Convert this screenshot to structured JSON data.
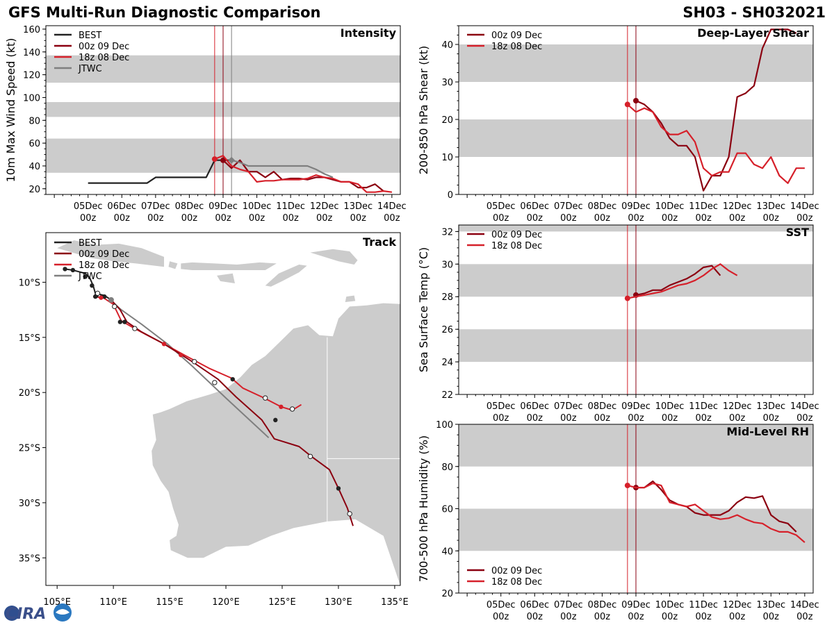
{
  "header": {
    "title": "GFS Multi-Run Diagnostic Comparison",
    "storm_id": "SH03 - SH032021"
  },
  "colors": {
    "best": "#222222",
    "run_00z": "#8b0010",
    "run_18z": "#d6202a",
    "jtwc": "#7f7f7f",
    "band": "#cccccc",
    "land": "#cccccc",
    "vline_18z": "#d6202a",
    "vline_00z": "#8b0010",
    "vline_jtwc": "#7f7f7f"
  },
  "logo": {
    "text": "CIRA"
  },
  "time_ticks": [
    {
      "day": 5,
      "l1": "05Dec",
      "l2": "00z"
    },
    {
      "day": 6,
      "l1": "06Dec",
      "l2": "00z"
    },
    {
      "day": 7,
      "l1": "07Dec",
      "l2": "00z"
    },
    {
      "day": 8,
      "l1": "08Dec",
      "l2": "00z"
    },
    {
      "day": 9,
      "l1": "09Dec",
      "l2": "00z"
    },
    {
      "day": 10,
      "l1": "10Dec",
      "l2": "00z"
    },
    {
      "day": 11,
      "l1": "11Dec",
      "l2": "00z"
    },
    {
      "day": 12,
      "l1": "12Dec",
      "l2": "00z"
    },
    {
      "day": 13,
      "l1": "13Dec",
      "l2": "00z"
    },
    {
      "day": 14,
      "l1": "14Dec",
      "l2": "00z"
    }
  ],
  "chart_data": [
    {
      "id": "intensity",
      "type": "line",
      "title": "Intensity",
      "ylabel": "10m Max Wind Speed (kt)",
      "xlim": [
        3.75,
        14.25
      ],
      "ylim": [
        15,
        163
      ],
      "yticks": [
        20,
        40,
        60,
        80,
        100,
        120,
        140,
        160
      ],
      "bands": [
        [
          34,
          64
        ],
        [
          83,
          96
        ],
        [
          113,
          137
        ]
      ],
      "vlines": [
        {
          "x": 8.75,
          "series": "18z"
        },
        {
          "x": 9.0,
          "series": "00z"
        },
        {
          "x": 9.25,
          "series": "jtwc"
        }
      ],
      "legend": [
        "BEST",
        "00z 09 Dec",
        "18z 08 Dec",
        "JTWC"
      ],
      "series": [
        {
          "key": "best",
          "name": "BEST",
          "x": [
            5,
            5.25,
            5.5,
            5.75,
            6,
            6.25,
            6.5,
            6.75,
            7,
            7.25,
            7.5,
            7.75,
            8,
            8.25,
            8.5,
            8.75,
            9,
            9.25
          ],
          "y": [
            25,
            25,
            25,
            25,
            25,
            25,
            25,
            25,
            30,
            30,
            30,
            30,
            30,
            30,
            30,
            45,
            45,
            45
          ]
        },
        {
          "key": "00z",
          "name": "00z 09 Dec",
          "x": [
            9,
            9.25,
            9.5,
            9.75,
            10,
            10.25,
            10.5,
            10.75,
            11,
            11.25,
            11.5,
            11.75,
            12,
            12.25,
            12.5,
            12.75,
            13,
            13.25,
            13.5,
            13.75
          ],
          "y": [
            45,
            38,
            45,
            35,
            35,
            30,
            35,
            28,
            29,
            29,
            28,
            30,
            30,
            28,
            26,
            26,
            21,
            21,
            24,
            18
          ]
        },
        {
          "key": "18z",
          "name": "18z 08 Dec",
          "x": [
            8.75,
            9,
            9.25,
            9.5,
            9.75,
            10,
            10.25,
            10.5,
            10.75,
            11,
            11.25,
            11.5,
            11.75,
            12,
            12.25,
            12.5,
            12.75,
            13,
            13.25,
            13.5,
            13.75,
            14
          ],
          "y": [
            46,
            49,
            40,
            37,
            35,
            26,
            27,
            27,
            28,
            28,
            28,
            29,
            32,
            30,
            29,
            26,
            26,
            24,
            17,
            17,
            18,
            17
          ]
        },
        {
          "key": "jtwc",
          "name": "JTWC",
          "x": [
            9.25,
            9.5,
            9.75,
            10,
            10.5,
            11,
            11.25,
            11.5,
            11.75,
            12,
            12.25
          ],
          "y": [
            45,
            43,
            40,
            40,
            40,
            40,
            40,
            40,
            37,
            33,
            30
          ]
        }
      ]
    },
    {
      "id": "shear",
      "type": "line",
      "title": "Deep-Layer Shear",
      "ylabel": "200-850 hPa Shear (kt)",
      "xlim": [
        3.75,
        14.25
      ],
      "ylim": [
        0,
        45
      ],
      "yticks": [
        0,
        10,
        20,
        30,
        40
      ],
      "bands": [
        [
          10,
          20
        ],
        [
          30,
          40
        ]
      ],
      "vlines": [
        {
          "x": 8.75,
          "series": "18z"
        },
        {
          "x": 9.0,
          "series": "00z"
        }
      ],
      "legend": [
        "00z 09 Dec",
        "18z 08 Dec"
      ],
      "series": [
        {
          "key": "00z",
          "name": "00z 09 Dec",
          "x": [
            9,
            9.25,
            9.5,
            9.75,
            10,
            10.25,
            10.5,
            10.75,
            11,
            11.25,
            11.5,
            11.75,
            12,
            12.25,
            12.5,
            12.75,
            13,
            13.25,
            13.5,
            13.75
          ],
          "y": [
            25,
            24,
            22,
            19,
            15,
            13,
            13,
            10,
            1,
            5,
            5,
            10,
            26,
            27,
            29,
            39,
            44,
            44,
            44,
            43
          ]
        },
        {
          "key": "18z",
          "name": "18z 08 Dec",
          "x": [
            8.75,
            9,
            9.25,
            9.5,
            9.75,
            10,
            10.25,
            10.5,
            10.75,
            11,
            11.25,
            11.5,
            11.75,
            12,
            12.25,
            12.5,
            12.75,
            13,
            13.25,
            13.5,
            13.75,
            14
          ],
          "y": [
            24,
            22,
            23,
            22,
            18,
            16,
            16,
            17,
            14,
            7,
            5,
            6,
            6,
            11,
            11,
            8,
            7,
            10,
            5,
            3,
            7,
            7
          ]
        }
      ]
    },
    {
      "id": "sst",
      "type": "line",
      "title": "SST",
      "ylabel": "Sea Surface Temp (°C)",
      "xlim": [
        3.75,
        14.25
      ],
      "ylim": [
        22,
        32.4
      ],
      "yticks": [
        22,
        24,
        26,
        28,
        30,
        32
      ],
      "bands": [
        [
          24,
          26
        ],
        [
          28,
          30
        ],
        [
          32,
          33
        ]
      ],
      "vlines": [
        {
          "x": 8.75,
          "series": "18z"
        },
        {
          "x": 9.0,
          "series": "00z"
        }
      ],
      "legend": [
        "00z 09 Dec",
        "18z 08 Dec"
      ],
      "series": [
        {
          "key": "00z",
          "name": "00z 09 Dec",
          "x": [
            9,
            9.25,
            9.5,
            9.75,
            10,
            10.25,
            10.5,
            10.75,
            11,
            11.25,
            11.5
          ],
          "y": [
            28.1,
            28.2,
            28.4,
            28.4,
            28.7,
            28.9,
            29.1,
            29.4,
            29.8,
            29.9,
            29.3
          ]
        },
        {
          "key": "18z",
          "name": "18z 08 Dec",
          "x": [
            8.75,
            9,
            9.25,
            9.5,
            9.75,
            10,
            10.25,
            10.5,
            10.75,
            11,
            11.25,
            11.5,
            11.75,
            12
          ],
          "y": [
            27.9,
            28.0,
            28.1,
            28.2,
            28.3,
            28.5,
            28.7,
            28.8,
            29.0,
            29.3,
            29.7,
            30.0,
            29.6,
            29.3
          ]
        }
      ]
    },
    {
      "id": "rh",
      "type": "line",
      "title": "Mid-Level RH",
      "ylabel": "700-500 hPa Humidity (%)",
      "xlim": [
        3.75,
        14.25
      ],
      "ylim": [
        20,
        100
      ],
      "yticks": [
        20,
        40,
        60,
        80,
        100
      ],
      "bands": [
        [
          40,
          60
        ],
        [
          80,
          100
        ]
      ],
      "vlines": [
        {
          "x": 8.75,
          "series": "18z"
        },
        {
          "x": 9.0,
          "series": "00z"
        }
      ],
      "legend": [
        "00z 09 Dec",
        "18z 08 Dec"
      ],
      "legend_pos": "bottom-left",
      "series": [
        {
          "key": "00z",
          "name": "00z 09 Dec",
          "x": [
            9,
            9.25,
            9.5,
            9.75,
            10,
            10.25,
            10.5,
            10.75,
            11,
            11.25,
            11.5,
            11.75,
            12,
            12.25,
            12.5,
            12.75,
            13,
            13.25,
            13.5,
            13.75
          ],
          "y": [
            70,
            70,
            73,
            69,
            64,
            62,
            61,
            58,
            57,
            57,
            57,
            59,
            63,
            65.5,
            65,
            66,
            57,
            54,
            53,
            49
          ]
        },
        {
          "key": "18z",
          "name": "18z 08 Dec",
          "x": [
            8.75,
            9,
            9.25,
            9.5,
            9.75,
            10,
            10.25,
            10.5,
            10.75,
            11,
            11.25,
            11.5,
            11.75,
            12,
            12.25,
            12.5,
            12.75,
            13,
            13.25,
            13.5,
            13.75,
            14
          ],
          "y": [
            71,
            70,
            70,
            72,
            71,
            63,
            62,
            61,
            62,
            59,
            56,
            55,
            55.5,
            57,
            55,
            53.5,
            53,
            50.5,
            49,
            49,
            47.5,
            44
          ]
        }
      ]
    },
    {
      "id": "track",
      "type": "scatter",
      "title": "Track",
      "xlabel": "Longitude",
      "ylabel": "Latitude",
      "xlim": [
        104,
        135.5
      ],
      "ylim": [
        -37.5,
        -5.5
      ],
      "xticks": [
        {
          "v": 105,
          "l": "105°E"
        },
        {
          "v": 110,
          "l": "110°E"
        },
        {
          "v": 115,
          "l": "115°E"
        },
        {
          "v": 120,
          "l": "120°E"
        },
        {
          "v": 125,
          "l": "125°E"
        },
        {
          "v": 130,
          "l": "130°E"
        },
        {
          "v": 135,
          "l": "135°E"
        }
      ],
      "yticks": [
        {
          "v": -10,
          "l": "10°S"
        },
        {
          "v": -15,
          "l": "15°S"
        },
        {
          "v": -20,
          "l": "20°S"
        },
        {
          "v": -25,
          "l": "25°S"
        },
        {
          "v": -30,
          "l": "30°S"
        },
        {
          "v": -35,
          "l": "35°S"
        }
      ],
      "legend": [
        "BEST",
        "00z 09 Dec",
        "18z 08 Dec",
        "JTWC"
      ],
      "series": [
        {
          "key": "best",
          "name": "BEST",
          "lon": [
            105.7,
            106.4,
            107.5,
            107.9,
            108.2,
            108.4,
            109.2,
            109.8
          ],
          "lat": [
            -8.8,
            -8.9,
            -9.2,
            -9.6,
            -10.3,
            -11.0,
            -11.2,
            -11.6
          ]
        },
        {
          "key": "00z",
          "name": "00z 09 Dec",
          "lon": [
            109.8,
            110.6,
            111.2,
            112.5,
            114.5,
            117.0,
            119.3,
            120.9,
            123.2,
            124.3,
            126.5,
            127.6,
            129.2,
            130.0,
            130.8,
            131.3
          ],
          "lat": [
            -11.6,
            -12.5,
            -13.6,
            -14.5,
            -15.6,
            -17.2,
            -18.8,
            -20.4,
            -22.5,
            -24.2,
            -24.9,
            -25.8,
            -27.0,
            -28.7,
            -30.5,
            -32.1
          ]
        },
        {
          "key": "18z",
          "name": "18z 08 Dec",
          "lon": [
            108.2,
            109.1,
            110.0,
            110.7,
            111.9,
            113.0,
            114.5,
            116.3,
            118.5,
            120.5,
            121.5,
            123.4,
            124.9,
            125.9,
            126.7
          ],
          "lat": [
            -11.3,
            -11.4,
            -12.0,
            -13.5,
            -14.2,
            -14.8,
            -15.6,
            -16.6,
            -17.8,
            -18.7,
            -19.6,
            -20.5,
            -21.3,
            -21.6,
            -21.1
          ]
        },
        {
          "key": "jtwc",
          "name": "JTWC",
          "lon": [
            109.7,
            110.7,
            112.5,
            114.8,
            117.0,
            120.0,
            123.8
          ],
          "lat": [
            -11.6,
            -12.5,
            -13.8,
            -15.6,
            -17.6,
            -20.5,
            -24.1
          ]
        }
      ],
      "markers": [
        {
          "series": "best",
          "style": "filled",
          "lon": [
            105.7,
            106.4,
            107.5,
            108.1,
            108.5,
            109.0,
            109.2,
            108.4
          ],
          "lat": [
            -8.8,
            -8.9,
            -9.5,
            -10.3,
            -11.2,
            -11.3,
            -11.3,
            -11.3
          ]
        },
        {
          "series": "best",
          "style": "open",
          "lon": [
            108.6,
            110.1
          ],
          "lat": [
            -11.0,
            -12.2
          ]
        },
        {
          "series": "00z",
          "style": "filled",
          "lon": [
            110.6,
            111.0,
            120.6,
            124.4,
            130.0
          ],
          "lat": [
            -13.6,
            -13.6,
            -18.8,
            -22.5,
            -28.7
          ]
        },
        {
          "series": "00z",
          "style": "open",
          "lon": [
            111.9,
            119.0,
            127.5,
            131.0
          ],
          "lat": [
            -14.2,
            -19.1,
            -25.8,
            -31.0
          ]
        },
        {
          "series": "18z",
          "style": "filled",
          "lon": [
            108.9,
            114.5,
            116.0,
            124.9
          ],
          "lat": [
            -11.4,
            -15.6,
            -16.6,
            -21.3
          ]
        },
        {
          "series": "18z",
          "style": "open",
          "lon": [
            117.2,
            123.5,
            125.9
          ],
          "lat": [
            -17.2,
            -20.5,
            -21.5
          ]
        },
        {
          "series": "jtwc",
          "style": "filled",
          "lon": [
            109.8
          ],
          "lat": [
            -11.6
          ]
        }
      ]
    }
  ]
}
